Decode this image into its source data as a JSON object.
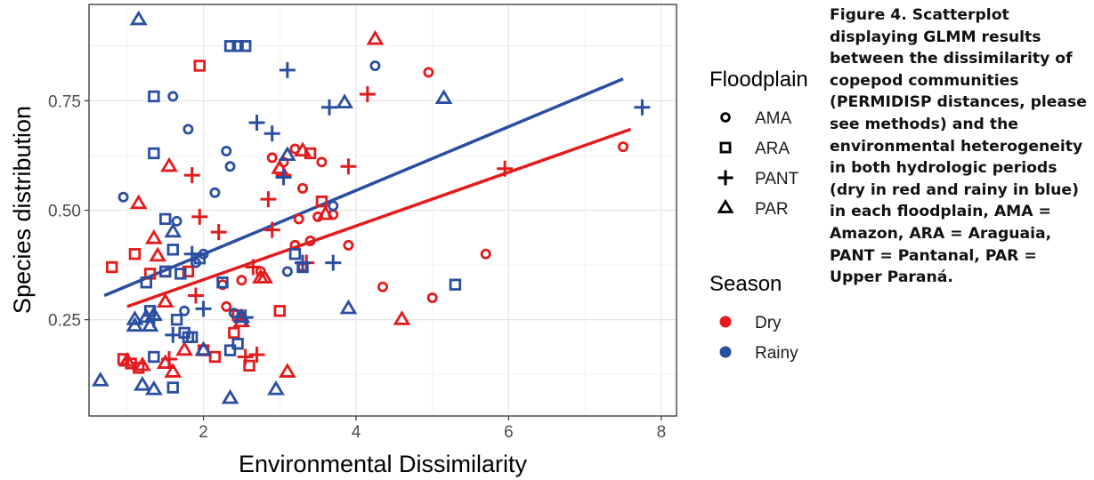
{
  "chart_data": {
    "type": "scatter",
    "xlabel": "Environmental Dissimilarity",
    "ylabel": "Species distribution",
    "xlim": [
      0.5,
      8.2
    ],
    "ylim": [
      0.03,
      0.97
    ],
    "xticks": [
      2,
      4,
      6,
      8
    ],
    "yticks": [
      0.25,
      0.5,
      0.75
    ],
    "grid": true,
    "legends": [
      {
        "title": "Floodplain",
        "position": "right",
        "entries": [
          {
            "label": "AMA",
            "shape": "circle"
          },
          {
            "label": "ARA",
            "shape": "square"
          },
          {
            "label": "PANT",
            "shape": "plus"
          },
          {
            "label": "PAR",
            "shape": "triangle"
          }
        ]
      },
      {
        "title": "Season",
        "position": "right",
        "entries": [
          {
            "label": "Dry",
            "color": "#e41a1c"
          },
          {
            "label": "Rainy",
            "color": "#2a4ea0"
          }
        ]
      }
    ],
    "colors": {
      "Dry": "#e41a1c",
      "Rainy": "#2a4ea0"
    },
    "fit_lines": [
      {
        "season": "Dry",
        "x": [
          1.0,
          7.6
        ],
        "y": [
          0.28,
          0.685
        ]
      },
      {
        "season": "Rainy",
        "x": [
          0.7,
          7.5
        ],
        "y": [
          0.305,
          0.8
        ]
      }
    ],
    "series": [
      {
        "season": "Dry",
        "floodplain": "AMA",
        "points": [
          [
            2.3,
            0.28
          ],
          [
            2.25,
            0.33
          ],
          [
            2.75,
            0.36
          ],
          [
            2.9,
            0.62
          ],
          [
            3.05,
            0.61
          ],
          [
            3.2,
            0.64
          ],
          [
            3.3,
            0.55
          ],
          [
            3.25,
            0.48
          ],
          [
            3.4,
            0.43
          ],
          [
            3.55,
            0.61
          ],
          [
            3.9,
            0.42
          ],
          [
            3.5,
            0.485
          ],
          [
            3.7,
            0.49
          ],
          [
            3.2,
            0.42
          ],
          [
            4.35,
            0.325
          ],
          [
            4.95,
            0.815
          ],
          [
            5.0,
            0.3
          ],
          [
            5.7,
            0.4
          ],
          [
            7.5,
            0.645
          ],
          [
            2.5,
            0.34
          ],
          [
            3.3,
            0.37
          ]
        ]
      },
      {
        "season": "Dry",
        "floodplain": "ARA",
        "points": [
          [
            1.95,
            0.83
          ],
          [
            3.4,
            0.63
          ],
          [
            3.55,
            0.52
          ],
          [
            3.0,
            0.27
          ],
          [
            0.8,
            0.37
          ],
          [
            1.1,
            0.4
          ],
          [
            1.3,
            0.355
          ],
          [
            1.5,
            0.36
          ],
          [
            1.8,
            0.36
          ],
          [
            2.45,
            0.26
          ],
          [
            2.4,
            0.22
          ],
          [
            0.95,
            0.16
          ],
          [
            1.05,
            0.15
          ],
          [
            1.15,
            0.14
          ],
          [
            2.0,
            0.18
          ],
          [
            2.15,
            0.165
          ],
          [
            2.6,
            0.145
          ]
        ]
      },
      {
        "season": "Dry",
        "floodplain": "PANT",
        "points": [
          [
            1.85,
            0.58
          ],
          [
            1.95,
            0.485
          ],
          [
            2.2,
            0.45
          ],
          [
            1.9,
            0.305
          ],
          [
            2.65,
            0.37
          ],
          [
            2.85,
            0.525
          ],
          [
            2.9,
            0.455
          ],
          [
            3.05,
            0.58
          ],
          [
            3.35,
            0.38
          ],
          [
            3.9,
            0.6
          ],
          [
            4.15,
            0.765
          ],
          [
            5.95,
            0.595
          ],
          [
            2.7,
            0.17
          ],
          [
            2.55,
            0.165
          ],
          [
            1.55,
            0.16
          ]
        ]
      },
      {
        "season": "Dry",
        "floodplain": "PAR",
        "points": [
          [
            1.15,
            0.515
          ],
          [
            1.35,
            0.435
          ],
          [
            1.4,
            0.395
          ],
          [
            1.55,
            0.6
          ],
          [
            1.5,
            0.29
          ],
          [
            1.5,
            0.15
          ],
          [
            1.6,
            0.13
          ],
          [
            1.75,
            0.18
          ],
          [
            2.5,
            0.245
          ],
          [
            2.75,
            0.345
          ],
          [
            2.8,
            0.345
          ],
          [
            3.0,
            0.595
          ],
          [
            3.3,
            0.635
          ],
          [
            3.1,
            0.13
          ],
          [
            3.6,
            0.49
          ],
          [
            4.25,
            0.89
          ],
          [
            4.6,
            0.25
          ],
          [
            1.2,
            0.145
          ],
          [
            1.0,
            0.155
          ],
          [
            2.0,
            0.18
          ]
        ]
      },
      {
        "season": "Rainy",
        "floodplain": "AMA",
        "points": [
          [
            1.6,
            0.76
          ],
          [
            1.8,
            0.685
          ],
          [
            2.3,
            0.635
          ],
          [
            2.35,
            0.6
          ],
          [
            2.15,
            0.54
          ],
          [
            1.65,
            0.475
          ],
          [
            0.95,
            0.53
          ],
          [
            2.0,
            0.4
          ],
          [
            3.1,
            0.36
          ],
          [
            3.7,
            0.51
          ],
          [
            4.25,
            0.83
          ],
          [
            1.75,
            0.27
          ],
          [
            2.4,
            0.265
          ],
          [
            1.9,
            0.38
          ]
        ]
      },
      {
        "season": "Rainy",
        "floodplain": "ARA",
        "points": [
          [
            2.35,
            0.875
          ],
          [
            2.45,
            0.875
          ],
          [
            2.55,
            0.875
          ],
          [
            1.35,
            0.76
          ],
          [
            1.35,
            0.63
          ],
          [
            1.5,
            0.48
          ],
          [
            1.6,
            0.41
          ],
          [
            1.25,
            0.335
          ],
          [
            1.5,
            0.36
          ],
          [
            1.7,
            0.355
          ],
          [
            1.95,
            0.39
          ],
          [
            2.25,
            0.335
          ],
          [
            3.2,
            0.4
          ],
          [
            3.3,
            0.37
          ],
          [
            5.3,
            0.33
          ],
          [
            1.3,
            0.27
          ],
          [
            1.65,
            0.25
          ],
          [
            1.75,
            0.22
          ],
          [
            1.8,
            0.21
          ],
          [
            1.85,
            0.21
          ],
          [
            1.35,
            0.165
          ],
          [
            1.6,
            0.095
          ],
          [
            2.35,
            0.18
          ],
          [
            2.45,
            0.195
          ]
        ]
      },
      {
        "season": "Rainy",
        "floodplain": "PANT",
        "points": [
          [
            3.1,
            0.82
          ],
          [
            2.7,
            0.7
          ],
          [
            2.9,
            0.675
          ],
          [
            3.65,
            0.735
          ],
          [
            7.75,
            0.735
          ],
          [
            3.05,
            0.575
          ],
          [
            2.0,
            0.275
          ],
          [
            1.35,
            0.25
          ],
          [
            2.55,
            0.255
          ],
          [
            3.3,
            0.38
          ],
          [
            3.7,
            0.38
          ],
          [
            1.85,
            0.4
          ],
          [
            1.6,
            0.215
          ]
        ]
      },
      {
        "season": "Rainy",
        "floodplain": "PAR",
        "points": [
          [
            1.15,
            0.935
          ],
          [
            3.85,
            0.745
          ],
          [
            5.15,
            0.755
          ],
          [
            3.1,
            0.625
          ],
          [
            1.6,
            0.45
          ],
          [
            1.1,
            0.25
          ],
          [
            1.25,
            0.255
          ],
          [
            1.1,
            0.235
          ],
          [
            1.35,
            0.26
          ],
          [
            0.65,
            0.11
          ],
          [
            1.2,
            0.1
          ],
          [
            1.35,
            0.09
          ],
          [
            2.0,
            0.18
          ],
          [
            2.35,
            0.07
          ],
          [
            2.95,
            0.09
          ],
          [
            3.9,
            0.275
          ],
          [
            2.5,
            0.255
          ],
          [
            1.3,
            0.235
          ]
        ]
      }
    ]
  },
  "caption": {
    "label": "Figure 4",
    "text": ". Scatterplot displaying GLMM results between the dissimilarity of copepod communities (PERMIDISP distances, please see methods) and the environmental heterogeneity in both hydrologic periods (dry in red and rainy in blue) in each floodplain, AMA = Amazon, ARA = Araguaia, PANT = Pantanal, PAR = Upper Paraná."
  }
}
